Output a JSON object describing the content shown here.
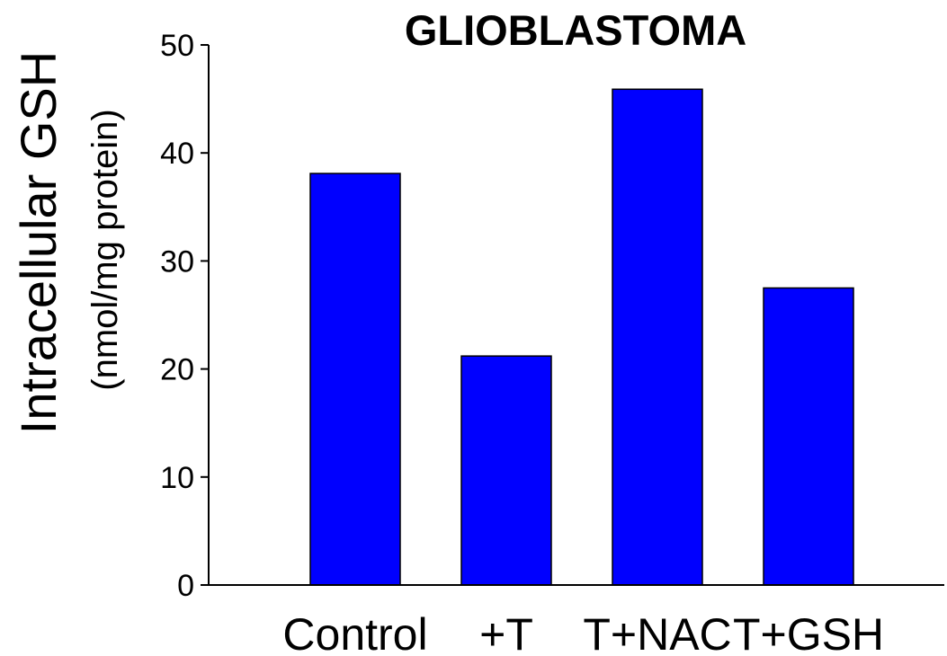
{
  "chart_data": {
    "type": "bar",
    "title": "GLIOBLASTOMA",
    "ylabel": "Intracellular GSH",
    "ylabel_unit": "(nmol/mg protein)",
    "xlabel": "",
    "categories": [
      "Control",
      "+T",
      "T+NAC",
      "T+GSH"
    ],
    "values": [
      38.1,
      21.2,
      45.9,
      27.5
    ],
    "ylim": [
      0,
      50
    ],
    "yticks": [
      0,
      10,
      20,
      30,
      40,
      50
    ],
    "bar_color": "#0000FF",
    "bar_edge_color": "#000000",
    "grid": false,
    "legend": "none"
  }
}
